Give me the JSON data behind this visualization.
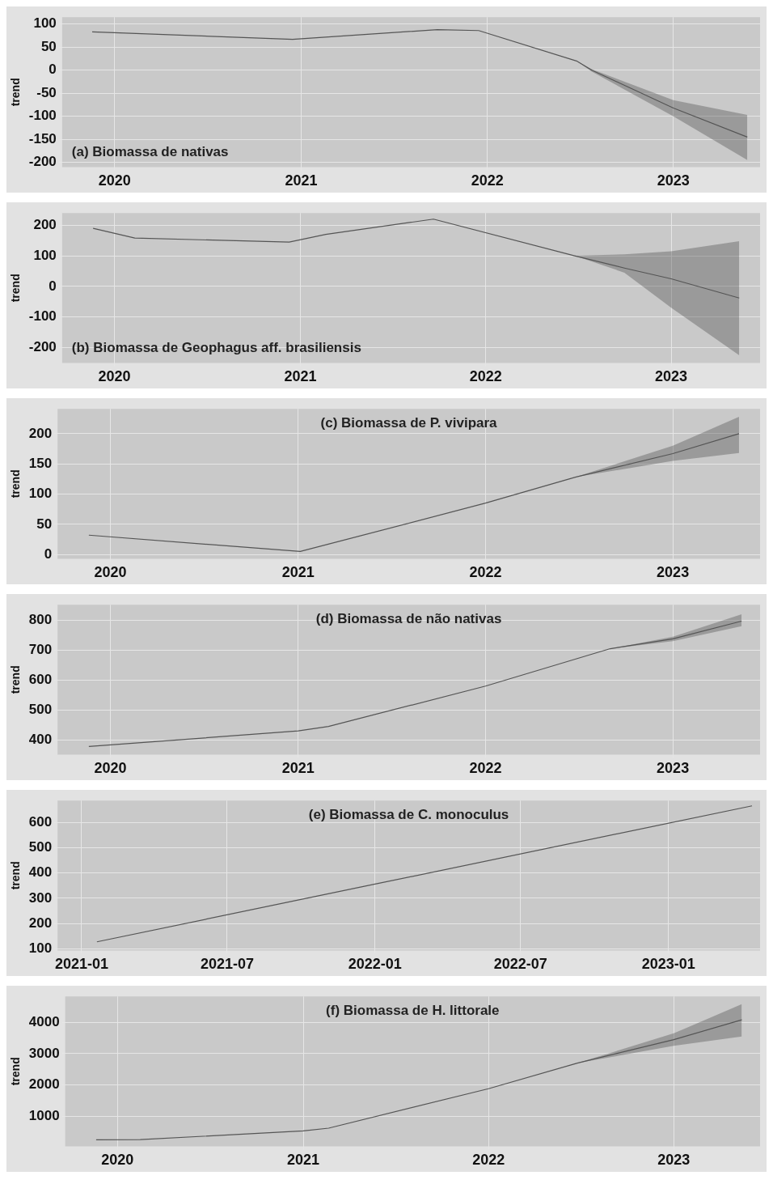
{
  "chart_data": [
    {
      "type": "line",
      "title": "(a) Biomassa de nativas",
      "ylabel": "trend",
      "x": [
        "2019-11-18",
        "2020-12-15",
        "2021-09-25",
        "2021-12-15",
        "2022-06-25",
        "2022-07-25",
        "2023-01-01",
        "2023-05-26"
      ],
      "series": [
        {
          "color": "#555555",
          "values": [
            83,
            67,
            88,
            86,
            20,
            0,
            -82,
            -145
          ],
          "lower": [
            null,
            null,
            null,
            null,
            20,
            -3,
            -100,
            -195
          ],
          "upper": [
            null,
            null,
            null,
            null,
            20,
            2,
            -65,
            -97
          ]
        }
      ],
      "xlim": [
        "2019-09-20",
        "2023-06-20"
      ],
      "xticks": [
        {
          "value": "2020-01-01",
          "label": "2020"
        },
        {
          "value": "2021-01-01",
          "label": "2021"
        },
        {
          "value": "2022-01-01",
          "label": "2022"
        },
        {
          "value": "2023-01-01",
          "label": "2023"
        }
      ],
      "ylim": [
        -210,
        115
      ],
      "yticks": [
        -200,
        -150,
        -100,
        -50,
        0,
        50,
        100
      ],
      "grid": true,
      "line_style": "solid"
    },
    {
      "type": "line",
      "title": "(b) Biomassa de Geophagus aff. brasiliensis",
      "ylabel": "trend",
      "x": [
        "2019-11-20",
        "2020-02-10",
        "2020-12-10",
        "2021-02-20",
        "2021-09-20",
        "2022-06-25",
        "2022-10-01",
        "2023-01-01",
        "2023-05-15"
      ],
      "series": [
        {
          "color": "#555555",
          "values": [
            190,
            158,
            145,
            170,
            220,
            100,
            60,
            25,
            -38
          ],
          "lower": [
            null,
            null,
            null,
            null,
            null,
            100,
            45,
            -70,
            -225
          ],
          "upper": [
            null,
            null,
            null,
            null,
            null,
            100,
            105,
            115,
            148
          ]
        }
      ],
      "xlim": [
        "2019-09-20",
        "2023-06-25"
      ],
      "xticks": [
        {
          "value": "2020-01-01",
          "label": "2020"
        },
        {
          "value": "2021-01-01",
          "label": "2021"
        },
        {
          "value": "2022-01-01",
          "label": "2022"
        },
        {
          "value": "2023-01-01",
          "label": "2023"
        }
      ],
      "ylim": [
        -250,
        240
      ],
      "yticks": [
        -200,
        -100,
        0,
        100,
        200
      ],
      "grid": true,
      "line_style": "solid"
    },
    {
      "type": "line",
      "title": "(c) Biomassa de P. vivipara",
      "ylabel": "trend",
      "x": [
        "2019-11-20",
        "2021-01-05",
        "2022-01-01",
        "2022-06-25",
        "2023-01-01",
        "2023-05-10"
      ],
      "series": [
        {
          "color": "#555555",
          "values": [
            32,
            5,
            85,
            128,
            167,
            200
          ],
          "lower": [
            null,
            null,
            null,
            128,
            155,
            168
          ],
          "upper": [
            null,
            null,
            null,
            128,
            180,
            228
          ]
        }
      ],
      "xlim": [
        "2019-09-20",
        "2023-06-20"
      ],
      "xticks": [
        {
          "value": "2020-01-01",
          "label": "2020"
        },
        {
          "value": "2021-01-01",
          "label": "2021"
        },
        {
          "value": "2022-01-01",
          "label": "2022"
        },
        {
          "value": "2023-01-01",
          "label": "2023"
        }
      ],
      "ylim": [
        -7,
        241
      ],
      "yticks": [
        0,
        50,
        100,
        150,
        200
      ],
      "grid": true,
      "line_style": "solid"
    },
    {
      "type": "line",
      "title": "(d) Biomassa de não nativas",
      "ylabel": "trend",
      "x": [
        "2019-11-20",
        "2021-01-01",
        "2021-03-01",
        "2022-01-01",
        "2022-09-01",
        "2023-01-01",
        "2023-05-15"
      ],
      "series": [
        {
          "color": "#555555",
          "values": [
            378,
            430,
            445,
            580,
            705,
            738,
            797
          ],
          "lower": [
            null,
            null,
            null,
            null,
            705,
            730,
            780
          ],
          "upper": [
            null,
            null,
            null,
            null,
            705,
            745,
            820
          ]
        }
      ],
      "xlim": [
        "2019-09-20",
        "2023-06-20"
      ],
      "xticks": [
        {
          "value": "2020-01-01",
          "label": "2020"
        },
        {
          "value": "2021-01-01",
          "label": "2021"
        },
        {
          "value": "2022-01-01",
          "label": "2022"
        },
        {
          "value": "2023-01-01",
          "label": "2023"
        }
      ],
      "ylim": [
        351,
        852
      ],
      "yticks": [
        400,
        500,
        600,
        700,
        800
      ],
      "grid": true,
      "line_style": "solid"
    },
    {
      "type": "line",
      "title": "(e) Biomassa de C. monoculus",
      "ylabel": "trend",
      "x": [
        "2021-01-20",
        "2022-01-01",
        "2023-04-15"
      ],
      "series": [
        {
          "color": "#555555",
          "values": [
            128,
            356,
            665
          ]
        }
      ],
      "xlim": [
        "2020-12-02",
        "2023-04-25"
      ],
      "xticks": [
        {
          "value": "2021-01-01",
          "label": "2021-01"
        },
        {
          "value": "2021-07-01",
          "label": "2021-07"
        },
        {
          "value": "2022-01-01",
          "label": "2022-01"
        },
        {
          "value": "2022-07-01",
          "label": "2022-07"
        },
        {
          "value": "2023-01-01",
          "label": "2023-01"
        }
      ],
      "ylim": [
        94,
        686
      ],
      "yticks": [
        100,
        200,
        300,
        400,
        500,
        600
      ],
      "grid": true,
      "line_style": "solid"
    },
    {
      "type": "line",
      "title": "(f) Biomassa de H. littorale",
      "ylabel": "trend",
      "x": [
        "2019-11-20",
        "2020-02-15",
        "2021-01-01",
        "2021-02-20",
        "2022-01-01",
        "2022-06-25",
        "2023-01-01",
        "2023-05-15"
      ],
      "series": [
        {
          "color": "#555555",
          "values": [
            250,
            255,
            530,
            620,
            1880,
            2700,
            3450,
            4080
          ],
          "lower": [
            null,
            null,
            null,
            null,
            null,
            2700,
            3250,
            3550
          ],
          "upper": [
            null,
            null,
            null,
            null,
            null,
            2700,
            3650,
            4580
          ]
        }
      ],
      "xlim": [
        "2019-09-20",
        "2023-06-20"
      ],
      "xticks": [
        {
          "value": "2020-01-01",
          "label": "2020"
        },
        {
          "value": "2021-01-01",
          "label": "2021"
        },
        {
          "value": "2022-01-01",
          "label": "2022"
        },
        {
          "value": "2023-01-01",
          "label": "2023"
        }
      ],
      "ylim": [
        40,
        4830
      ],
      "yticks": [
        1000,
        2000,
        3000,
        4000
      ],
      "grid": true,
      "line_style": "solid"
    }
  ]
}
